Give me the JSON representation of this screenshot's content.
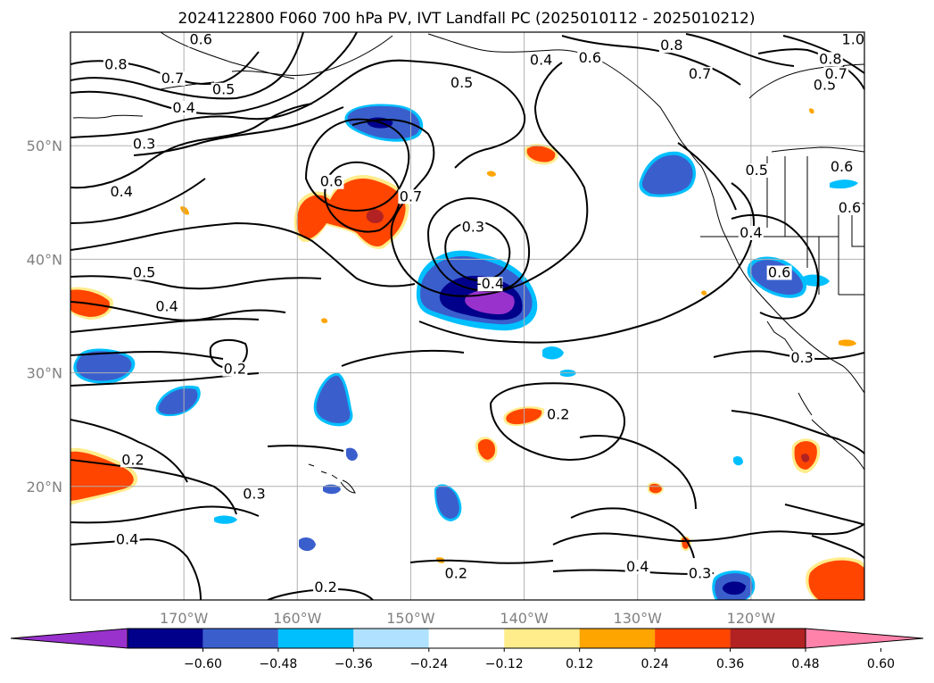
{
  "title": "2024122800 F060 700 hPa PV, IVT Landfall PC (2025010112 - 2025010212)",
  "map": {
    "lat_labels": [
      {
        "lat": 50,
        "text": "50°N"
      },
      {
        "lat": 40,
        "text": "40°N"
      },
      {
        "lat": 30,
        "text": "30°N"
      },
      {
        "lat": 20,
        "text": "20°N"
      }
    ],
    "lon_labels": [
      {
        "lon": -170,
        "text": "170°W"
      },
      {
        "lon": -160,
        "text": "160°W"
      },
      {
        "lon": -150,
        "text": "150°W"
      },
      {
        "lon": -140,
        "text": "140°W"
      },
      {
        "lon": -130,
        "text": "130°W"
      },
      {
        "lon": -120,
        "text": "120°W"
      }
    ],
    "contour_labels": [
      {
        "text": "0.8",
        "lon": -176.0,
        "lat": 56.8
      },
      {
        "text": "0.7",
        "lon": -171.0,
        "lat": 55.6
      },
      {
        "text": "0.5",
        "lon": -166.5,
        "lat": 54.6
      },
      {
        "text": "0.4",
        "lon": -170.0,
        "lat": 53.0
      },
      {
        "text": "0.3",
        "lon": -173.5,
        "lat": 49.8
      },
      {
        "text": "0.4",
        "lon": -175.5,
        "lat": 45.6
      },
      {
        "text": "0.6",
        "lon": -168.5,
        "lat": 59.0
      },
      {
        "text": "0.4",
        "lon": -138.5,
        "lat": 57.2
      },
      {
        "text": "0.6",
        "lon": -134.2,
        "lat": 57.4
      },
      {
        "text": "0.8",
        "lon": -127.0,
        "lat": 58.5
      },
      {
        "text": "0.7",
        "lon": -124.5,
        "lat": 56.0
      },
      {
        "text": "0.5",
        "lon": -145.5,
        "lat": 55.2
      },
      {
        "text": "0.6",
        "lon": -157.0,
        "lat": 46.5
      },
      {
        "text": "0.7",
        "lon": -150.0,
        "lat": 45.2
      },
      {
        "text": "0.3",
        "lon": -144.5,
        "lat": 42.5
      },
      {
        "text": "-0.4",
        "lon": -143.0,
        "lat": 37.5
      },
      {
        "text": "0.5",
        "lon": -173.5,
        "lat": 38.5
      },
      {
        "text": "0.4",
        "lon": -171.5,
        "lat": 35.5
      },
      {
        "text": "0.2",
        "lon": -165.5,
        "lat": 30.0
      },
      {
        "text": "0.2",
        "lon": -174.5,
        "lat": 22.0
      },
      {
        "text": "0.3",
        "lon": -163.8,
        "lat": 19.0
      },
      {
        "text": "0.4",
        "lon": -175.0,
        "lat": 15.0
      },
      {
        "text": "0.2",
        "lon": -146.0,
        "lat": 12.0
      },
      {
        "text": "0.2",
        "lon": -157.5,
        "lat": 10.8
      },
      {
        "text": "0.2",
        "lon": -137.0,
        "lat": 26.0
      },
      {
        "text": "0.4",
        "lon": -130.0,
        "lat": 12.6
      },
      {
        "text": "0.3",
        "lon": -124.5,
        "lat": 12.0
      },
      {
        "text": "0.5",
        "lon": -119.5,
        "lat": 47.5
      },
      {
        "text": "0.4",
        "lon": -120.0,
        "lat": 42.0
      },
      {
        "text": "0.6",
        "lon": -117.5,
        "lat": 38.5
      },
      {
        "text": "0.3",
        "lon": -115.5,
        "lat": 31.0
      },
      {
        "text": "0.5",
        "lon": -113.5,
        "lat": 55.0
      },
      {
        "text": "0.8",
        "lon": -113.0,
        "lat": 57.3
      },
      {
        "text": "0.7",
        "lon": -112.5,
        "lat": 56.0
      },
      {
        "text": "1.0",
        "lon": -111.0,
        "lat": 59.0
      },
      {
        "text": "0.6",
        "lon": -112.0,
        "lat": 47.8
      },
      {
        "text": "0.6",
        "lon": -111.3,
        "lat": 44.2
      }
    ]
  },
  "colorbar": {
    "colors": [
      "#9932CC",
      "#00008B",
      "#3A5FCD",
      "#00BFFF",
      "#B0E2FF",
      "#FFFFFF",
      "#FFEC8B",
      "#FFA500",
      "#FF4500",
      "#B22222",
      "#FF82AB"
    ],
    "ticks": [
      "−0.60",
      "−0.48",
      "−0.36",
      "−0.24",
      "−0.12",
      "0.12",
      "0.24",
      "0.36",
      "0.48",
      "0.60"
    ]
  },
  "colors": {
    "neg_strong": "#9932CC",
    "neg_2": "#00008B",
    "neg_3": "#3A5FCD",
    "neg_4": "#00BFFF",
    "neg_5": "#B0E2FF",
    "pos_1": "#FFEC8B",
    "pos_2": "#FFA500",
    "pos_3": "#FF4500",
    "pos_4": "#B22222",
    "contour": "#000000",
    "grid": "#b0b0b0",
    "axis_label": "#808080"
  }
}
